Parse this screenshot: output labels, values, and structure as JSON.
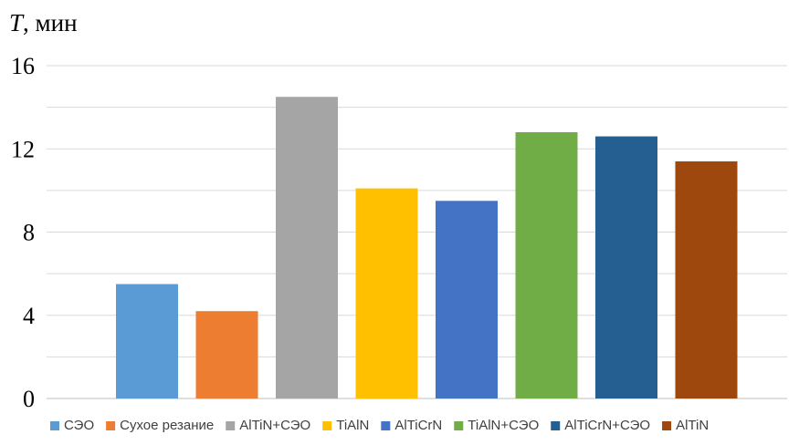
{
  "chart_data": {
    "type": "bar",
    "ylabel_var": "T",
    "ylabel_unit": ", мин",
    "ylim": [
      0,
      16
    ],
    "yticks": [
      0,
      4,
      8,
      12,
      16
    ],
    "ytick_labels": [
      "0",
      "4",
      "8",
      "12",
      "16"
    ],
    "grid": true,
    "legend_position": "bottom",
    "categories": [
      "СЭО",
      "Сухое резание",
      "AlTiN+СЭО",
      "TiAlN",
      "AlTiCrN",
      "TiAlN+СЭО",
      "AlTiCrN+СЭО",
      "AlTiN"
    ],
    "values": [
      5.5,
      4.2,
      14.5,
      10.1,
      9.5,
      12.8,
      12.6,
      11.4
    ],
    "colors": [
      "#5B9BD5",
      "#ED7D31",
      "#A5A5A5",
      "#FFC000",
      "#4472C4",
      "#70AD47",
      "#255E91",
      "#9E480E"
    ]
  }
}
